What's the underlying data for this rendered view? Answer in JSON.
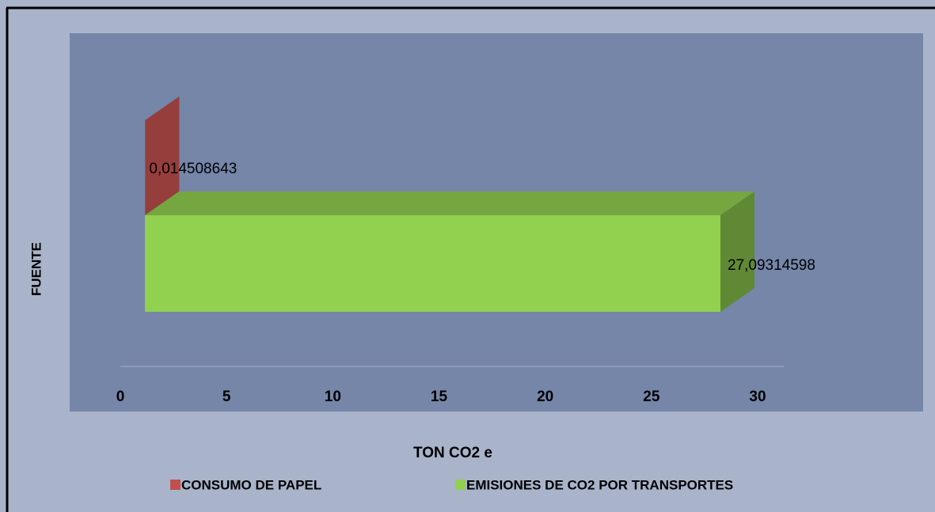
{
  "chart_data": {
    "type": "bar3d_horizontal",
    "xlabel": "TON CO2 e",
    "ylabel": "FUENTE",
    "categories": [
      null
    ],
    "series": [
      {
        "name": "CONSUMO DE PAPEL",
        "color": "#c0504d",
        "values": [
          0.014508643
        ],
        "value_labels": [
          "0,014508643"
        ]
      },
      {
        "name": "EMISIONES DE CO2 POR TRANSPORTES",
        "color": "#92d050",
        "values": [
          27.09314598
        ],
        "value_labels": [
          "27,09314598"
        ]
      }
    ],
    "xlim": [
      0,
      30
    ],
    "xticks": [
      0,
      5,
      10,
      15,
      20,
      25,
      30
    ],
    "legend": "bottom"
  }
}
